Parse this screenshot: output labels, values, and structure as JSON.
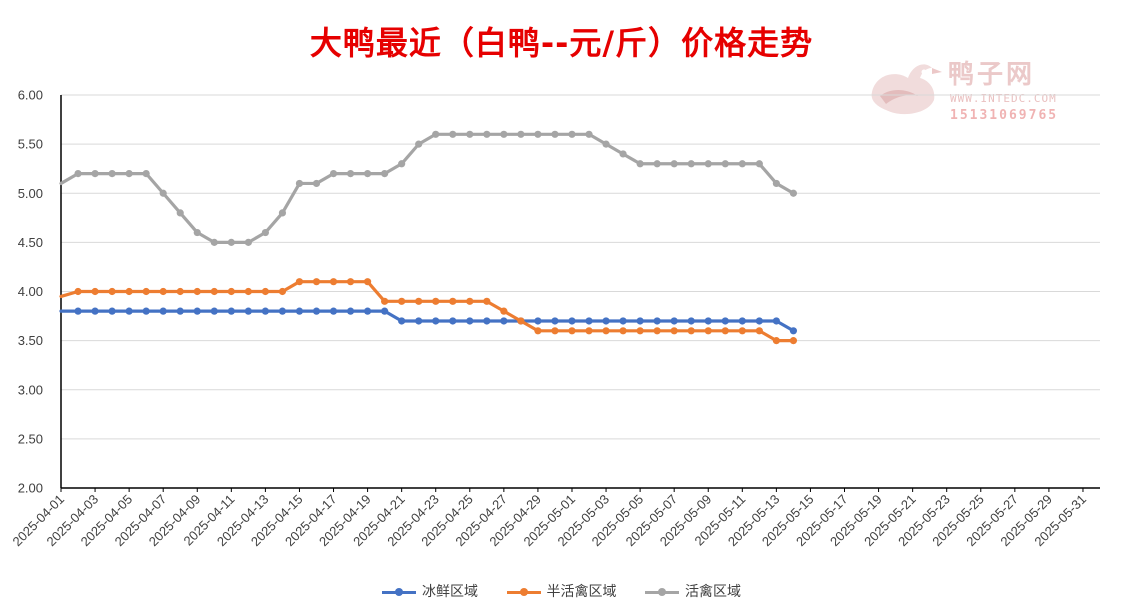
{
  "watermark": {
    "brand": "鸭子网",
    "url": "WWW.INTEDC.COM",
    "phone": "15131069765"
  },
  "chart_data": {
    "type": "line",
    "title": "大鸭最近（白鸭--元/斤）价格走势",
    "xlabel": "",
    "ylabel": "",
    "ylim": [
      2.0,
      6.0
    ],
    "y_ticks": [
      "2.00",
      "2.50",
      "3.00",
      "3.50",
      "4.00",
      "4.50",
      "5.00",
      "5.50",
      "6.00"
    ],
    "x_start": "2025-04-01",
    "x_end": "2025-06-01",
    "x_tick_labels": [
      "2025-04-01",
      "2025-04-03",
      "2025-04-05",
      "2025-04-07",
      "2025-04-09",
      "2025-04-11",
      "2025-04-13",
      "2025-04-15",
      "2025-04-17",
      "2025-04-19",
      "2025-04-21",
      "2025-04-23",
      "2025-04-25",
      "2025-04-27",
      "2025-04-29",
      "2025-05-01",
      "2025-05-03",
      "2025-05-05",
      "2025-05-07",
      "2025-05-09",
      "2025-05-11",
      "2025-05-13",
      "2025-05-15",
      "2025-05-17",
      "2025-05-19",
      "2025-05-21",
      "2025-05-23",
      "2025-05-25",
      "2025-05-27",
      "2025-05-29",
      "2025-05-31"
    ],
    "grid": true,
    "legend_position": "bottom",
    "series": [
      {
        "name": "冰鲜区域",
        "color": "#4472c4",
        "values": [
          3.8,
          3.8,
          3.8,
          3.8,
          3.8,
          3.8,
          3.8,
          3.8,
          3.8,
          3.8,
          3.8,
          3.8,
          3.8,
          3.8,
          3.8,
          3.8,
          3.8,
          3.8,
          3.8,
          3.8,
          3.7,
          3.7,
          3.7,
          3.7,
          3.7,
          3.7,
          3.7,
          3.7,
          3.7,
          3.7,
          3.7,
          3.7,
          3.7,
          3.7,
          3.7,
          3.7,
          3.7,
          3.7,
          3.7,
          3.7,
          3.7,
          3.7,
          3.7,
          3.6
        ]
      },
      {
        "name": "半活禽区域",
        "color": "#ed7d31",
        "values": [
          3.95,
          4.0,
          4.0,
          4.0,
          4.0,
          4.0,
          4.0,
          4.0,
          4.0,
          4.0,
          4.0,
          4.0,
          4.0,
          4.0,
          4.1,
          4.1,
          4.1,
          4.1,
          4.1,
          3.9,
          3.9,
          3.9,
          3.9,
          3.9,
          3.9,
          3.9,
          3.8,
          3.7,
          3.6,
          3.6,
          3.6,
          3.6,
          3.6,
          3.6,
          3.6,
          3.6,
          3.6,
          3.6,
          3.6,
          3.6,
          3.6,
          3.6,
          3.5,
          3.5
        ]
      },
      {
        "name": "活禽区域",
        "color": "#a5a5a5",
        "values": [
          5.1,
          5.2,
          5.2,
          5.2,
          5.2,
          5.2,
          5.0,
          4.8,
          4.6,
          4.5,
          4.5,
          4.5,
          4.6,
          4.8,
          5.1,
          5.1,
          5.2,
          5.2,
          5.2,
          5.2,
          5.3,
          5.5,
          5.6,
          5.6,
          5.6,
          5.6,
          5.6,
          5.6,
          5.6,
          5.6,
          5.6,
          5.6,
          5.5,
          5.4,
          5.3,
          5.3,
          5.3,
          5.3,
          5.3,
          5.3,
          5.3,
          5.3,
          5.1,
          5.0
        ]
      }
    ]
  }
}
